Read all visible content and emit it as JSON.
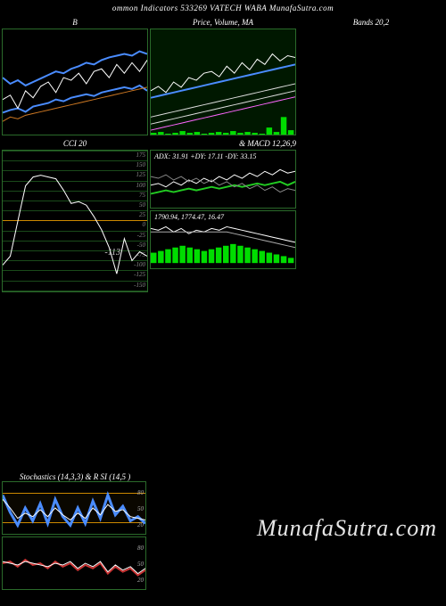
{
  "header": "ommon Indicators 533269 VATECH WABA MunafaSutra.com",
  "watermark": "MunafaSutra.com",
  "panels": {
    "bollinger": {
      "title": "B",
      "type": "line",
      "series": {
        "upper": {
          "color": "#4a8cff",
          "width": 2,
          "pts": [
            55,
            62,
            58,
            64,
            60,
            56,
            52,
            48,
            50,
            45,
            42,
            38,
            40,
            35,
            32,
            30,
            28,
            30,
            25,
            28
          ]
        },
        "lower": {
          "color": "#4a8cff",
          "width": 2,
          "pts": [
            95,
            92,
            90,
            94,
            88,
            86,
            84,
            80,
            82,
            78,
            76,
            74,
            76,
            72,
            70,
            68,
            66,
            68,
            64,
            70
          ]
        },
        "mid": {
          "color": "#ffffff",
          "width": 1,
          "pts": [
            80,
            75,
            90,
            70,
            78,
            65,
            60,
            72,
            55,
            58,
            50,
            62,
            48,
            45,
            55,
            40,
            50,
            38,
            48,
            35
          ]
        },
        "extra": {
          "color": "#cc7722",
          "width": 1,
          "pts": [
            105,
            100,
            102,
            98,
            96,
            94,
            92,
            90,
            88,
            86,
            84,
            82,
            80,
            78,
            76,
            74,
            72,
            70,
            68,
            66
          ]
        }
      }
    },
    "price": {
      "title": "Price, Volume, MA",
      "bg": "#001800",
      "grid_color": "#1a4a1a",
      "series": {
        "price": {
          "color": "#ffffff",
          "width": 1,
          "pts": [
            70,
            65,
            72,
            60,
            66,
            55,
            58,
            50,
            48,
            54,
            42,
            50,
            38,
            46,
            34,
            40,
            28,
            36,
            30,
            32
          ]
        },
        "ma_blue": {
          "color": "#4a8cff",
          "width": 2,
          "pts": [
            78,
            76,
            74,
            72,
            70,
            68,
            66,
            64,
            62,
            60,
            58,
            56,
            54,
            52,
            50,
            48,
            46,
            44,
            42,
            40
          ]
        },
        "ma_w1": {
          "color": "#dddddd",
          "width": 1,
          "pts": [
            100,
            98,
            96,
            94,
            92,
            90,
            88,
            86,
            84,
            82,
            80,
            78,
            76,
            74,
            72,
            70,
            68,
            66,
            64,
            62
          ]
        },
        "ma_w2": {
          "color": "#dddddd",
          "width": 1,
          "pts": [
            108,
            106,
            104,
            102,
            100,
            98,
            96,
            94,
            92,
            90,
            88,
            86,
            84,
            82,
            80,
            78,
            76,
            74,
            72,
            70
          ]
        },
        "ma_pink": {
          "color": "#ff66ff",
          "width": 1,
          "pts": [
            115,
            113,
            111,
            109,
            107,
            105,
            103,
            101,
            99,
            97,
            95,
            93,
            91,
            89,
            87,
            85,
            83,
            81,
            79,
            77
          ]
        }
      },
      "volume": {
        "color": "#00dd00",
        "vals": [
          2,
          3,
          1,
          2,
          4,
          2,
          3,
          1,
          2,
          3,
          2,
          4,
          2,
          3,
          2,
          1,
          8,
          3,
          20,
          5
        ]
      }
    },
    "bands": {
      "title": "Bands 20,2"
    },
    "cci": {
      "title": "CCI 20",
      "ticks": [
        "175",
        "150",
        "125",
        "100",
        "75",
        "50",
        "25",
        "0",
        "-25",
        "-50",
        "-75",
        "-100",
        "-125",
        "-150",
        "-175"
      ],
      "zero_idx": 7,
      "value_label": "-113",
      "series": {
        "color": "#ffffff",
        "width": 1,
        "pts": [
          130,
          120,
          80,
          40,
          30,
          28,
          30,
          32,
          45,
          60,
          58,
          62,
          75,
          90,
          110,
          140,
          100,
          125,
          115,
          120
        ]
      }
    },
    "adx": {
      "label": "ADX: 31.91 +DY: 17.11 -DY: 33.15",
      "title_right": "& MACD 12,26,9",
      "series": {
        "adx": {
          "color": "#ffffff",
          "width": 1,
          "pts": [
            40,
            38,
            42,
            36,
            40,
            34,
            38,
            32,
            36,
            30,
            34,
            28,
            32,
            26,
            30,
            24,
            28,
            22,
            26,
            24
          ]
        },
        "pdi": {
          "color": "#22cc22",
          "width": 2,
          "pts": [
            50,
            48,
            46,
            48,
            46,
            44,
            46,
            44,
            42,
            44,
            42,
            40,
            42,
            40,
            38,
            40,
            38,
            36,
            40,
            36
          ]
        },
        "mdi": {
          "color": "#888888",
          "width": 1,
          "pts": [
            30,
            32,
            28,
            34,
            30,
            36,
            32,
            38,
            34,
            40,
            36,
            42,
            38,
            44,
            40,
            46,
            42,
            48,
            44,
            46
          ]
        }
      }
    },
    "macd": {
      "label": "1790.94, 1774.47, 16.47",
      "hist": {
        "color": "#00dd00",
        "vals": [
          12,
          14,
          16,
          18,
          20,
          18,
          16,
          14,
          16,
          18,
          20,
          22,
          20,
          18,
          16,
          14,
          12,
          10,
          8,
          6
        ]
      },
      "series": {
        "a": {
          "color": "#ffffff",
          "width": 1,
          "pts": [
            20,
            22,
            18,
            24,
            20,
            26,
            22,
            24,
            20,
            22,
            18,
            20,
            22,
            24,
            26,
            28,
            30,
            32,
            34,
            36
          ]
        },
        "b": {
          "color": "#aaaaaa",
          "width": 1,
          "pts": [
            24,
            24,
            24,
            24,
            24,
            24,
            24,
            24,
            24,
            24,
            24,
            26,
            28,
            30,
            32,
            34,
            36,
            38,
            40,
            42
          ]
        }
      }
    },
    "stoch": {
      "title": "Stochastics                       (14,3,3) & R                     SI                            (14,5                                )",
      "box1": {
        "band_top": 20,
        "band_bot": 80,
        "ticks": {
          "80": "80",
          "50": "50",
          "20": "20"
        },
        "series": {
          "k": {
            "color": "#4a8cff",
            "width": 3,
            "pts": [
              15,
              35,
              50,
              30,
              45,
              25,
              48,
              20,
              40,
              50,
              30,
              48,
              22,
              42,
              15,
              38,
              28,
              45,
              40,
              48
            ]
          },
          "d": {
            "color": "#ffffff",
            "width": 1,
            "pts": [
              20,
              30,
              42,
              36,
              40,
              32,
              40,
              30,
              38,
              44,
              36,
              42,
              30,
              38,
              26,
              34,
              32,
              40,
              42,
              44
            ]
          }
        }
      },
      "box2": {
        "ticks": {
          "80": "80",
          "50": "50",
          "20": "20"
        },
        "series": {
          "a": {
            "color": "#cc3333",
            "width": 2,
            "pts": [
              30,
              28,
              34,
              26,
              32,
              30,
              36,
              28,
              34,
              30,
              38,
              32,
              36,
              30,
              42,
              34,
              40,
              36,
              44,
              38
            ]
          },
          "b": {
            "color": "#ffffff",
            "width": 1,
            "pts": [
              28,
              30,
              32,
              28,
              30,
              32,
              34,
              30,
              32,
              28,
              36,
              30,
              34,
              28,
              40,
              32,
              38,
              34,
              42,
              36
            ]
          }
        }
      }
    }
  }
}
